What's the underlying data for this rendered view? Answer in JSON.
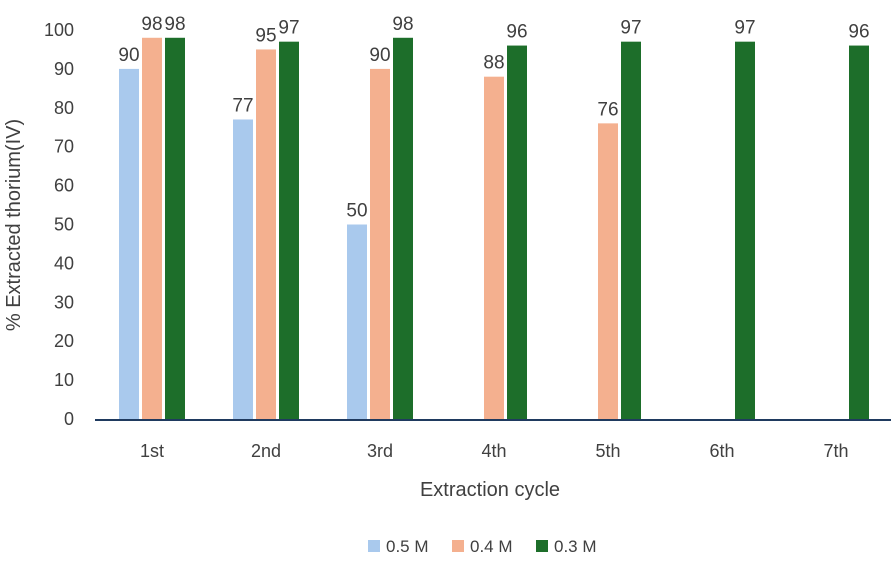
{
  "chart_data": {
    "type": "bar",
    "title": "",
    "xlabel": "Extraction cycle",
    "ylabel": "% Extracted thorium(IV)",
    "ylim": [
      0,
      100
    ],
    "yticks": [
      0,
      10,
      20,
      30,
      40,
      50,
      60,
      70,
      80,
      90,
      100
    ],
    "categories": [
      "1st",
      "2nd",
      "3rd",
      "4th",
      "5th",
      "6th",
      "7th"
    ],
    "grid": false,
    "legend_position": "bottom",
    "series": [
      {
        "name": "0.5 M",
        "color": "#a9c9ed",
        "values": [
          90,
          77,
          50,
          null,
          null,
          null,
          null
        ]
      },
      {
        "name": "0.4 M",
        "color": "#f4b08f",
        "values": [
          98,
          95,
          90,
          88,
          76,
          null,
          null
        ]
      },
      {
        "name": "0.3 M",
        "color": "#1d6e2a",
        "values": [
          98,
          97,
          98,
          96,
          97,
          97,
          96
        ]
      }
    ],
    "axis_color": "#1f3a5f"
  }
}
